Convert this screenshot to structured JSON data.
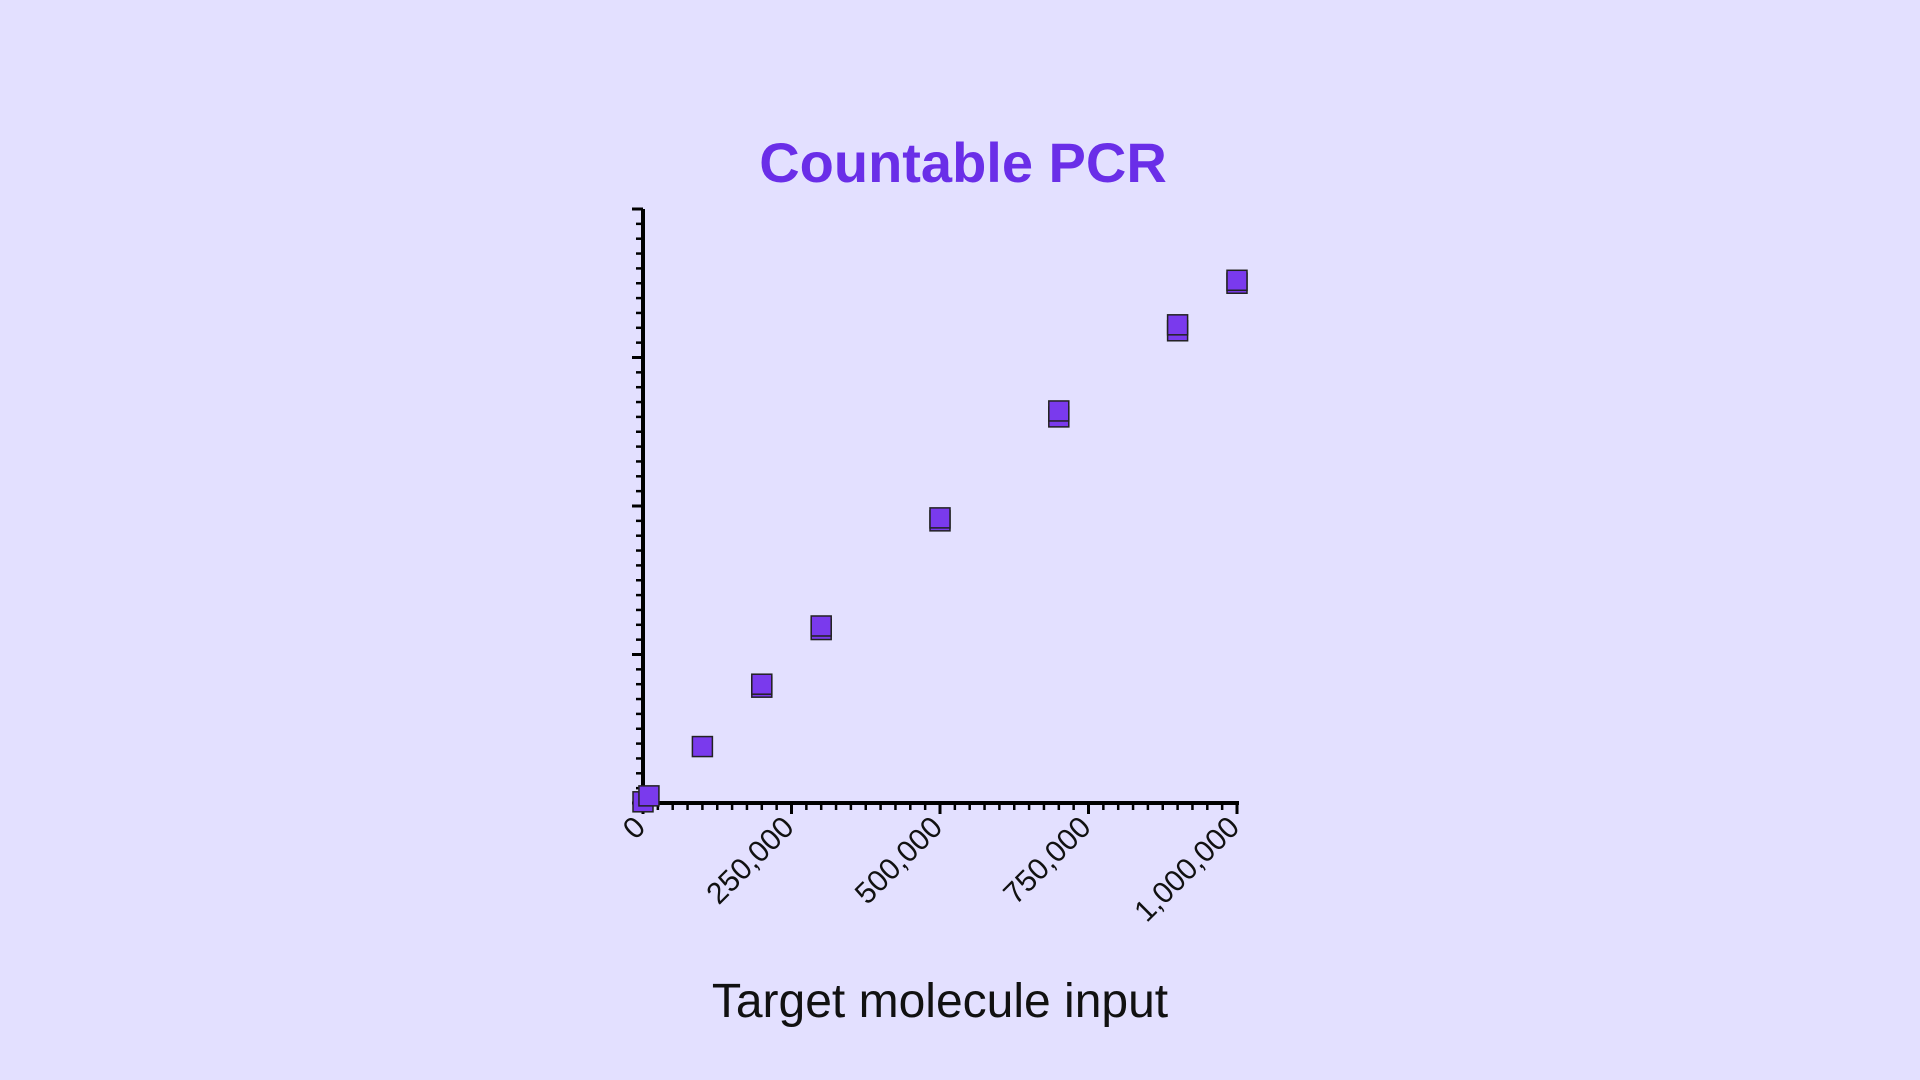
{
  "chart_data": {
    "type": "scatter",
    "title": "Countable PCR",
    "xlabel": "Target molecule input",
    "ylabel": "",
    "xlim": [
      0,
      1000000
    ],
    "ylim": [
      0,
      1000000
    ],
    "x_ticks": [
      0,
      250000,
      500000,
      750000,
      1000000
    ],
    "x_tick_labels": [
      "0",
      "250,000",
      "500,000",
      "750,000",
      "1,000,000"
    ],
    "y_ticks": [
      0,
      250000,
      500000,
      750000,
      1000000
    ],
    "y_tick_labels_visible": false,
    "grid": false,
    "legend": "none",
    "marker": "square",
    "marker_color": "#7a3aed",
    "series": [
      {
        "x": [
          0,
          10000,
          100000,
          200000,
          200000,
          300000,
          300000,
          500000,
          500000,
          700000,
          700000,
          900000,
          900000,
          1000000,
          1000000
        ],
        "y": [
          2000,
          12000,
          95000,
          195000,
          200000,
          292000,
          298000,
          475000,
          480000,
          650000,
          660000,
          795000,
          805000,
          875000,
          880000
        ]
      }
    ]
  }
}
